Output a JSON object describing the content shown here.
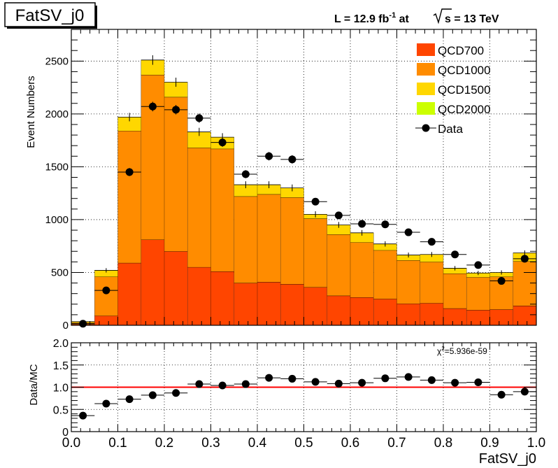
{
  "histogram_name": "FatSV_j0",
  "lumi_label": "L = 12.9 fb",
  "lumi_exponent": "-1",
  "lumi_at": " at ",
  "sqrt_s_label": "s = 13 TeV",
  "chi2_label": "χ",
  "chi2_exponent": "2",
  "chi2_value": "=5.936e-59",
  "colors": {
    "QCD700": "#ff4500",
    "QCD1000": "#ff8c00",
    "QCD1500": "#ffd700",
    "QCD2000": "#ccff00",
    "ratio_line": "#ff0000"
  },
  "chart_data": [
    {
      "type": "bar",
      "stacked": true,
      "title": "",
      "xlabel": "",
      "ylabel": "Event Numbers",
      "xlim": [
        0,
        1
      ],
      "ylim": [
        0,
        2800
      ],
      "grid": true,
      "legend_position": "top-right",
      "bin_edges": [
        0.0,
        0.05,
        0.1,
        0.15,
        0.2,
        0.25,
        0.3,
        0.35,
        0.4,
        0.45,
        0.5,
        0.55,
        0.6,
        0.65,
        0.7,
        0.75,
        0.8,
        0.85,
        0.9,
        0.95,
        1.0
      ],
      "y_ticks": [
        0,
        500,
        1000,
        1500,
        2000,
        2500
      ],
      "series": [
        {
          "name": "QCD700",
          "values": [
            10,
            90,
            590,
            810,
            700,
            550,
            510,
            400,
            410,
            390,
            360,
            280,
            265,
            250,
            205,
            210,
            160,
            145,
            150,
            185
          ]
        },
        {
          "name": "QCD1000",
          "values": [
            15,
            370,
            1250,
            1560,
            1460,
            1130,
            1160,
            820,
            830,
            820,
            650,
            580,
            520,
            460,
            410,
            390,
            330,
            310,
            310,
            420
          ]
        },
        {
          "name": "QCD1500",
          "values": [
            10,
            60,
            130,
            140,
            140,
            150,
            110,
            110,
            90,
            90,
            40,
            90,
            90,
            60,
            50,
            70,
            50,
            40,
            40,
            80
          ]
        },
        {
          "name": "QCD2000",
          "values": [
            0,
            0,
            0,
            0,
            0,
            0,
            0,
            0,
            0,
            0,
            0,
            0,
            0,
            0,
            0,
            0,
            0,
            0,
            0,
            0
          ]
        }
      ],
      "data": {
        "name": "Data",
        "x": [
          0.025,
          0.075,
          0.125,
          0.175,
          0.225,
          0.275,
          0.325,
          0.375,
          0.425,
          0.475,
          0.525,
          0.575,
          0.625,
          0.675,
          0.725,
          0.775,
          0.825,
          0.875,
          0.925,
          0.975
        ],
        "values": [
          15,
          330,
          1450,
          2070,
          2040,
          1960,
          1730,
          1430,
          1600,
          1570,
          1170,
          1040,
          960,
          955,
          880,
          790,
          670,
          570,
          420,
          630
        ]
      }
    },
    {
      "type": "scatter",
      "title": "",
      "xlabel": "FatSV_j0",
      "ylabel": "Data/MC",
      "xlim": [
        0,
        1
      ],
      "ylim": [
        0,
        2
      ],
      "grid": true,
      "y_ticks": [
        "0",
        "0.5",
        "1.0",
        "1.5",
        "2.0"
      ],
      "x_ticks": [
        "0.0",
        "0.1",
        "0.2",
        "0.3",
        "0.4",
        "0.5",
        "0.6",
        "0.7",
        "0.8",
        "0.9",
        "1.0"
      ],
      "reference_line": 1.0,
      "x": [
        0.025,
        0.075,
        0.125,
        0.175,
        0.225,
        0.275,
        0.325,
        0.375,
        0.425,
        0.475,
        0.525,
        0.575,
        0.625,
        0.675,
        0.725,
        0.775,
        0.825,
        0.875,
        0.925,
        0.975
      ],
      "values": [
        0.36,
        0.63,
        0.73,
        0.82,
        0.87,
        1.07,
        1.04,
        1.07,
        1.21,
        1.19,
        1.12,
        1.08,
        1.1,
        1.2,
        1.23,
        1.16,
        1.1,
        1.11,
        0.83,
        0.9
      ]
    }
  ]
}
